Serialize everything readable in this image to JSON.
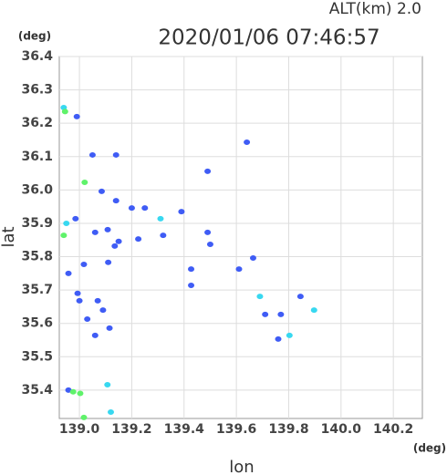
{
  "chart_data": {
    "type": "scatter",
    "title": "2020/01/06 07:46:57",
    "subtitle": "ALT(km)  2.0",
    "y_unit": "(deg)",
    "x_unit": "(deg)",
    "x_label": "lon",
    "y_label": "lat",
    "xlim": [
      138.923,
      140.311
    ],
    "ylim": [
      35.315,
      36.4
    ],
    "xticks": [
      {
        "value": 139,
        "label": "139.0"
      },
      139.2,
      139.4,
      139.6,
      139.8,
      {
        "value": 140,
        "label": "140.0"
      },
      140.2
    ],
    "yticks": [
      35.4,
      35.5,
      35.6,
      35.7,
      35.8,
      35.9,
      {
        "value": 36,
        "label": "36.0"
      },
      36.1,
      36.2,
      36.3,
      36.4
    ],
    "grid": true,
    "series": [
      {
        "color": "#3f5cf5",
        "x": [
          138.99,
          139.05,
          139.14,
          139.085,
          139.14,
          139.2,
          139.25,
          138.985,
          139.06,
          139.108,
          139.32,
          139.39,
          139.49,
          139.49,
          139.64,
          139.225,
          139.135,
          139.11,
          139.017,
          139.427,
          139.427,
          139.61,
          139.664,
          139.845,
          139.77,
          139.76,
          138.993,
          139.0,
          139.07,
          139.03,
          139.06,
          139.115,
          139.09,
          138.958,
          139.15,
          139.5,
          139.71,
          138.958
        ],
        "y": [
          36.22,
          36.105,
          36.105,
          35.996,
          35.968,
          35.946,
          35.946,
          35.914,
          35.873,
          35.881,
          35.864,
          35.935,
          35.873,
          36.056,
          36.143,
          35.853,
          35.832,
          35.783,
          35.777,
          35.763,
          35.714,
          35.763,
          35.796,
          35.681,
          35.627,
          35.553,
          35.69,
          35.668,
          35.668,
          35.613,
          35.564,
          35.586,
          35.64,
          35.4,
          35.846,
          35.837,
          35.627,
          35.75
        ]
      },
      {
        "color": "#38d8f0",
        "x": [
          138.94,
          138.95,
          139.31,
          139.69,
          139.897,
          139.803,
          139.107,
          139.12
        ],
        "y": [
          36.247,
          35.9,
          35.914,
          35.681,
          35.64,
          35.564,
          35.416,
          35.334
        ]
      },
      {
        "color": "#5ff26a",
        "x": [
          138.945,
          139.02,
          138.94,
          138.976,
          139.003,
          139.017
        ],
        "y": [
          36.235,
          36.023,
          35.864,
          35.395,
          35.39,
          35.318
        ]
      }
    ]
  }
}
